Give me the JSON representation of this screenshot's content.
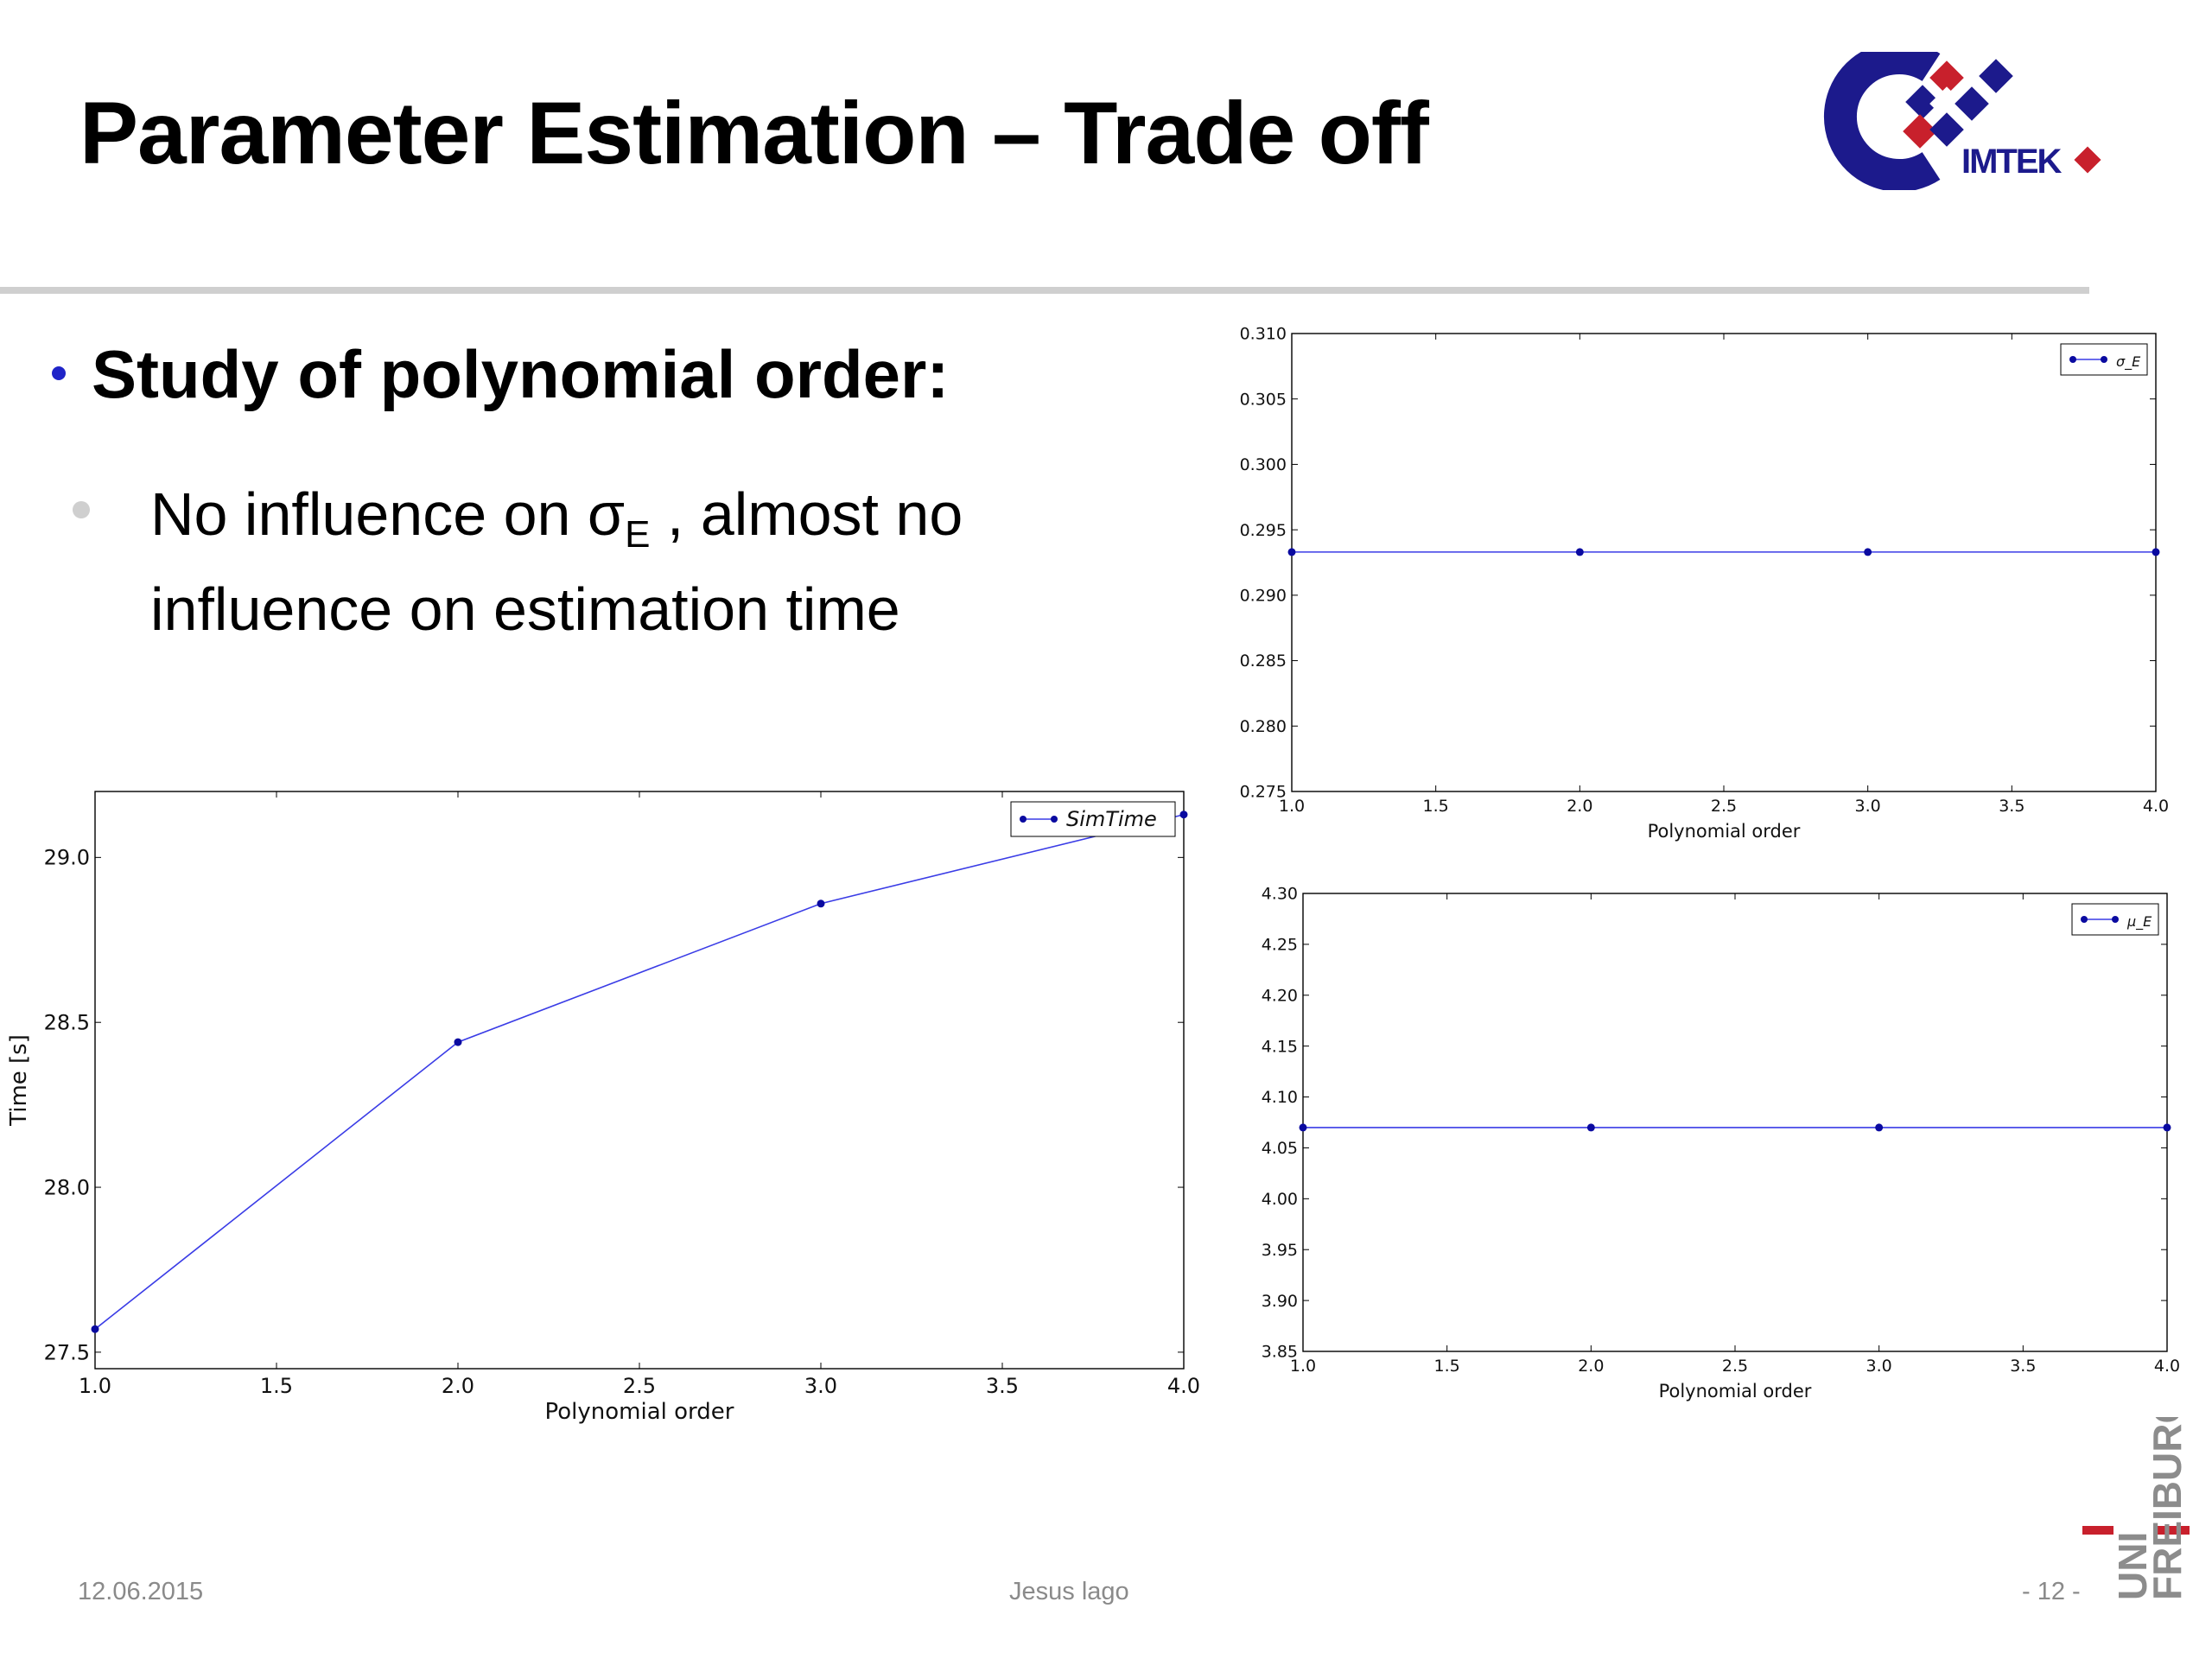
{
  "slide": {
    "title": "Parameter Estimation – Trade off",
    "bullet1": "Study of polynomial order:",
    "bullet2": {
      "text_a": "No influence on σ",
      "subscript": "E",
      "text_b": " , almost no influence on estimation time"
    },
    "logo_text": "IMTEK",
    "uni_text": "UNI",
    "freiburg_text": "FREIBURG"
  },
  "footer": {
    "date": "12.06.2015",
    "author": "Jesus lago",
    "page": "- 12 -"
  },
  "colors": {
    "series": "#3a3ce6",
    "marker": "#0a0aa0",
    "logo_blue": "#1c1a8c",
    "logo_red": "#c8202c",
    "uni_gray": "#8c8c8c",
    "bullet_blue": "#1f24c8"
  },
  "chart_data": [
    {
      "id": "simtime",
      "type": "line",
      "xlabel": "Polynomial order",
      "ylabel": "Time [s]",
      "xlim": [
        1.0,
        4.0
      ],
      "ylim": [
        27.45,
        29.2
      ],
      "xticks": [
        1.0,
        1.5,
        2.0,
        2.5,
        3.0,
        3.5,
        4.0
      ],
      "yticks": [
        27.5,
        28.0,
        28.5,
        29.0
      ],
      "xtick_labels": [
        "1.0",
        "1.5",
        "2.0",
        "2.5",
        "3.0",
        "3.5",
        "4.0"
      ],
      "ytick_labels": [
        "27.5",
        "28.0",
        "28.5",
        "29.0"
      ],
      "legend_position": "top-right",
      "grid": false,
      "series": [
        {
          "name": "SimTime",
          "x": [
            1,
            2,
            3,
            4
          ],
          "y": [
            27.57,
            28.44,
            28.86,
            29.13
          ]
        }
      ]
    },
    {
      "id": "sigma",
      "type": "line",
      "xlabel": "Polynomial order",
      "ylabel": "",
      "xlim": [
        1.0,
        4.0
      ],
      "ylim": [
        0.275,
        0.31
      ],
      "xticks": [
        1.0,
        1.5,
        2.0,
        2.5,
        3.0,
        3.5,
        4.0
      ],
      "yticks": [
        0.275,
        0.28,
        0.285,
        0.29,
        0.295,
        0.3,
        0.305,
        0.31
      ],
      "xtick_labels": [
        "1.0",
        "1.5",
        "2.0",
        "2.5",
        "3.0",
        "3.5",
        "4.0"
      ],
      "ytick_labels": [
        "0.275",
        "0.280",
        "0.285",
        "0.290",
        "0.295",
        "0.300",
        "0.305",
        "0.310"
      ],
      "legend_position": "top-right",
      "grid": false,
      "series": [
        {
          "name": "σ_E",
          "x": [
            1,
            2,
            3,
            4
          ],
          "y": [
            0.2933,
            0.2933,
            0.2933,
            0.2933
          ]
        }
      ]
    },
    {
      "id": "mu",
      "type": "line",
      "xlabel": "Polynomial order",
      "ylabel": "",
      "xlim": [
        1.0,
        4.0
      ],
      "ylim": [
        3.85,
        4.3
      ],
      "xticks": [
        1.0,
        1.5,
        2.0,
        2.5,
        3.0,
        3.5,
        4.0
      ],
      "yticks": [
        3.85,
        3.9,
        3.95,
        4.0,
        4.05,
        4.1,
        4.15,
        4.2,
        4.25,
        4.3
      ],
      "xtick_labels": [
        "1.0",
        "1.5",
        "2.0",
        "2.5",
        "3.0",
        "3.5",
        "4.0"
      ],
      "ytick_labels": [
        "3.85",
        "3.90",
        "3.95",
        "4.00",
        "4.05",
        "4.10",
        "4.15",
        "4.20",
        "4.25",
        "4.30"
      ],
      "legend_position": "top-right",
      "grid": false,
      "series": [
        {
          "name": "μ_E",
          "x": [
            1,
            2,
            3,
            4
          ],
          "y": [
            4.07,
            4.07,
            4.07,
            4.07
          ]
        }
      ]
    }
  ]
}
